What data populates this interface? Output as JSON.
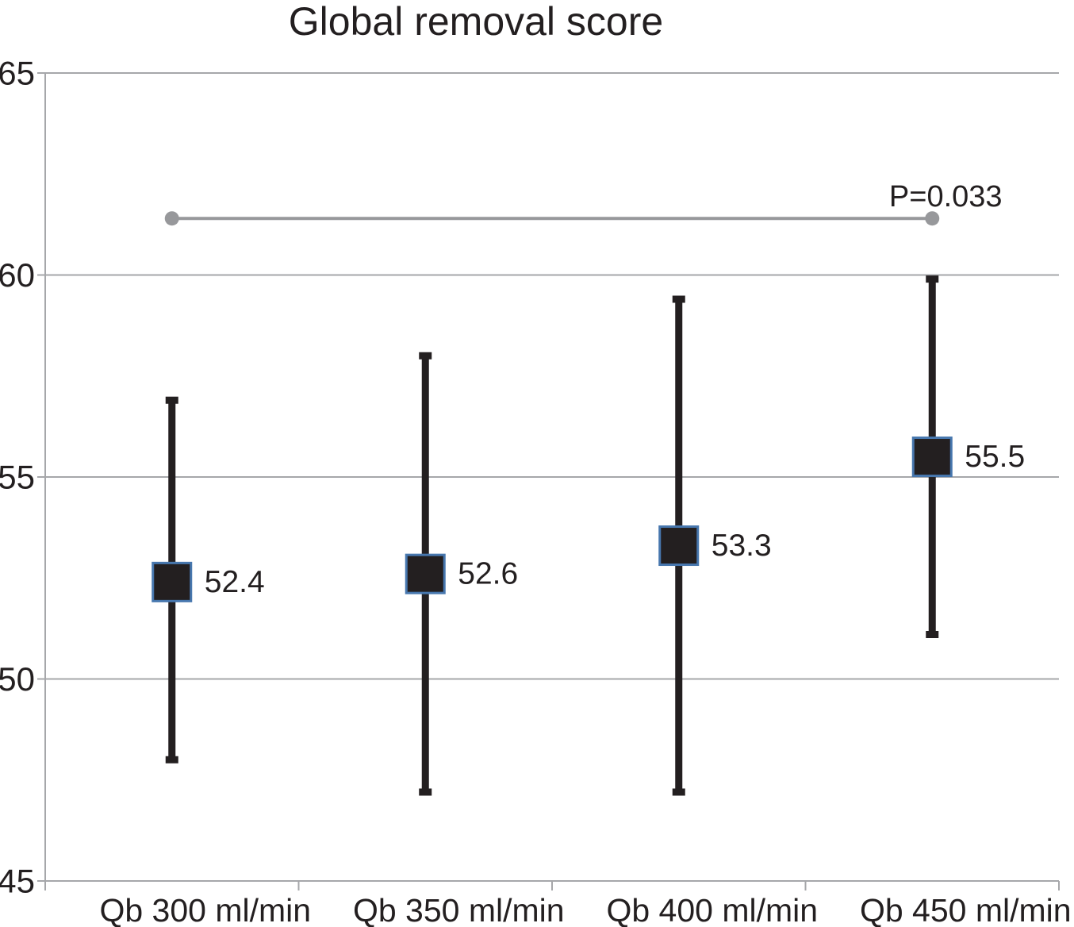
{
  "chart_data": {
    "type": "scatter",
    "title": "Global removal score",
    "categories": [
      "Qb 300 ml/min",
      "Qb 350 ml/min",
      "Qb 400 ml/min",
      "Qb 450 ml/min"
    ],
    "series": [
      {
        "name": "Global removal score (mean with error bars)",
        "values": [
          52.4,
          52.6,
          53.3,
          55.5
        ],
        "error_high": [
          56.9,
          58.0,
          59.4,
          59.9
        ],
        "error_low": [
          48.0,
          47.2,
          47.2,
          51.1
        ]
      }
    ],
    "value_labels": [
      "52.4",
      "52.6",
      "53.3",
      "55.5"
    ],
    "ylim": [
      45,
      65
    ],
    "yticks": [
      45,
      50,
      55,
      60,
      65
    ],
    "xlabel": "",
    "ylabel": "",
    "grid": true,
    "legend_position": "none",
    "annotation": {
      "label": "P=0.033",
      "from_category_index": 0,
      "to_category_index": 3,
      "y_value": 61.4
    }
  },
  "colors": {
    "text": "#231f20",
    "grid": "#a6a7aa",
    "error_bar": "#231f20",
    "marker_fill": "#231f20",
    "marker_border": "#4777ae",
    "significance": "#97989b"
  }
}
